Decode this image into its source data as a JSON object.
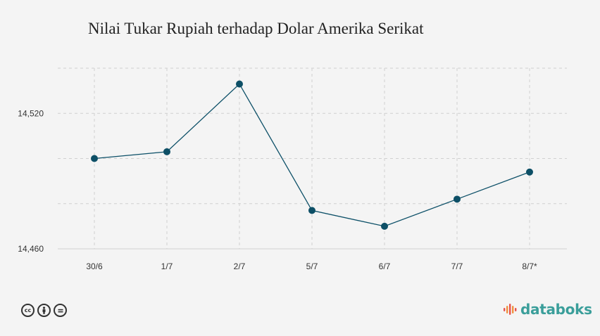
{
  "chart_data": {
    "type": "line",
    "title": "Nilai Tukar Rupiah terhadap Dolar Amerika Serikat",
    "xlabel": "",
    "ylabel": "",
    "categories": [
      "30/6",
      "1/7",
      "2/7",
      "5/7",
      "6/7",
      "7/7",
      "8/7*"
    ],
    "series": [
      {
        "values": [
          14500,
          14503,
          14533,
          14477,
          14470,
          14482,
          14494
        ]
      }
    ],
    "ylim": [
      14460,
      14540
    ],
    "yticks": [
      14460,
      14480,
      14500,
      14520,
      14540
    ],
    "ytick_labels": [
      "14,460",
      "",
      "",
      "14,520",
      ""
    ],
    "grid": true,
    "line_color": "#0d5068",
    "marker_color": "#0d4f66"
  },
  "footer": {
    "brand": "databoks",
    "brand_color": "#3a9e9a",
    "license_icons": [
      "cc-icon",
      "by-icon",
      "nd-icon"
    ]
  }
}
